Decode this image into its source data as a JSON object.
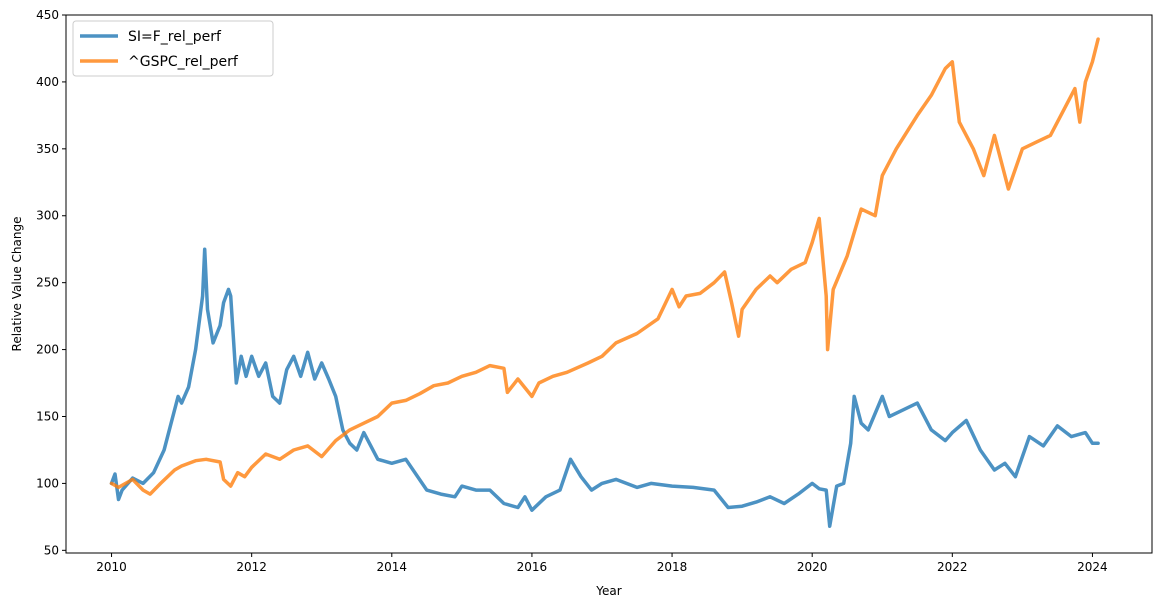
{
  "chart_data": {
    "type": "line",
    "title": "",
    "xlabel": "Year",
    "ylabel": "Relative Value Change",
    "xlim": [
      2009.35,
      2024.85
    ],
    "ylim": [
      48,
      450
    ],
    "xticks": [
      "2010",
      "2012",
      "2014",
      "2016",
      "2018",
      "2020",
      "2022",
      "2024"
    ],
    "yticks": [
      "50",
      "100",
      "150",
      "200",
      "250",
      "300",
      "350",
      "400",
      "450"
    ],
    "grid": false,
    "legend": "top-left",
    "series": [
      {
        "name": "SI=F_rel_perf",
        "color": "#1f77b4",
        "x": [
          2010.0,
          2010.05,
          2010.1,
          2010.15,
          2010.3,
          2010.45,
          2010.6,
          2010.75,
          2010.85,
          2010.95,
          2011.0,
          2011.1,
          2011.2,
          2011.3,
          2011.33,
          2011.37,
          2011.45,
          2011.55,
          2011.6,
          2011.67,
          2011.7,
          2011.78,
          2011.85,
          2011.92,
          2012.0,
          2012.1,
          2012.2,
          2012.3,
          2012.4,
          2012.5,
          2012.6,
          2012.7,
          2012.8,
          2012.9,
          2013.0,
          2013.1,
          2013.2,
          2013.3,
          2013.4,
          2013.5,
          2013.6,
          2013.8,
          2014.0,
          2014.2,
          2014.5,
          2014.7,
          2014.9,
          2015.0,
          2015.2,
          2015.4,
          2015.6,
          2015.8,
          2015.9,
          2016.0,
          2016.2,
          2016.4,
          2016.55,
          2016.7,
          2016.85,
          2017.0,
          2017.2,
          2017.5,
          2017.7,
          2018.0,
          2018.3,
          2018.6,
          2018.8,
          2019.0,
          2019.2,
          2019.4,
          2019.6,
          2019.8,
          2020.0,
          2020.1,
          2020.2,
          2020.25,
          2020.35,
          2020.45,
          2020.55,
          2020.6,
          2020.7,
          2020.8,
          2021.0,
          2021.1,
          2021.3,
          2021.5,
          2021.7,
          2021.9,
          2022.0,
          2022.2,
          2022.4,
          2022.6,
          2022.75,
          2022.9,
          2023.1,
          2023.3,
          2023.5,
          2023.7,
          2023.9,
          2024.0,
          2024.08
        ],
        "values": [
          100,
          107,
          88,
          95,
          104,
          100,
          108,
          125,
          145,
          165,
          160,
          172,
          200,
          240,
          275,
          230,
          205,
          218,
          235,
          245,
          240,
          175,
          195,
          180,
          195,
          180,
          190,
          165,
          160,
          185,
          195,
          180,
          198,
          178,
          190,
          178,
          165,
          140,
          130,
          125,
          138,
          118,
          115,
          118,
          95,
          92,
          90,
          98,
          95,
          95,
          85,
          82,
          90,
          80,
          90,
          95,
          118,
          105,
          95,
          100,
          103,
          97,
          100,
          98,
          97,
          95,
          82,
          83,
          86,
          90,
          85,
          92,
          100,
          96,
          95,
          68,
          98,
          100,
          130,
          165,
          145,
          140,
          165,
          150,
          155,
          160,
          140,
          132,
          138,
          147,
          125,
          110,
          115,
          105,
          135,
          128,
          143,
          135,
          138,
          130,
          130
        ]
      },
      {
        "name": "^GSPC_rel_perf",
        "color": "#ff7f0e",
        "x": [
          2010.0,
          2010.1,
          2010.3,
          2010.45,
          2010.55,
          2010.7,
          2010.9,
          2011.0,
          2011.2,
          2011.35,
          2011.55,
          2011.6,
          2011.7,
          2011.8,
          2011.9,
          2012.0,
          2012.2,
          2012.4,
          2012.6,
          2012.8,
          2013.0,
          2013.2,
          2013.4,
          2013.6,
          2013.8,
          2014.0,
          2014.2,
          2014.4,
          2014.6,
          2014.8,
          2015.0,
          2015.2,
          2015.4,
          2015.6,
          2015.65,
          2015.8,
          2016.0,
          2016.1,
          2016.3,
          2016.5,
          2016.8,
          2017.0,
          2017.2,
          2017.5,
          2017.8,
          2018.0,
          2018.1,
          2018.2,
          2018.4,
          2018.6,
          2018.75,
          2018.85,
          2018.95,
          2019.0,
          2019.2,
          2019.4,
          2019.5,
          2019.7,
          2019.9,
          2020.0,
          2020.1,
          2020.2,
          2020.22,
          2020.3,
          2020.5,
          2020.7,
          2020.9,
          2021.0,
          2021.2,
          2021.5,
          2021.7,
          2021.9,
          2022.0,
          2022.1,
          2022.3,
          2022.45,
          2022.6,
          2022.75,
          2022.8,
          2023.0,
          2023.2,
          2023.4,
          2023.6,
          2023.75,
          2023.82,
          2023.9,
          2024.0,
          2024.08
        ],
        "values": [
          100,
          97,
          103,
          95,
          92,
          100,
          110,
          113,
          117,
          118,
          116,
          103,
          98,
          108,
          105,
          112,
          122,
          118,
          125,
          128,
          120,
          132,
          140,
          145,
          150,
          160,
          162,
          167,
          173,
          175,
          180,
          183,
          188,
          186,
          168,
          178,
          165,
          175,
          180,
          183,
          190,
          195,
          205,
          212,
          223,
          245,
          232,
          240,
          242,
          250,
          258,
          235,
          210,
          230,
          245,
          255,
          250,
          260,
          265,
          280,
          298,
          240,
          200,
          245,
          270,
          305,
          300,
          330,
          350,
          375,
          390,
          410,
          415,
          370,
          350,
          330,
          360,
          330,
          320,
          350,
          355,
          360,
          380,
          395,
          370,
          400,
          415,
          432
        ]
      }
    ]
  }
}
